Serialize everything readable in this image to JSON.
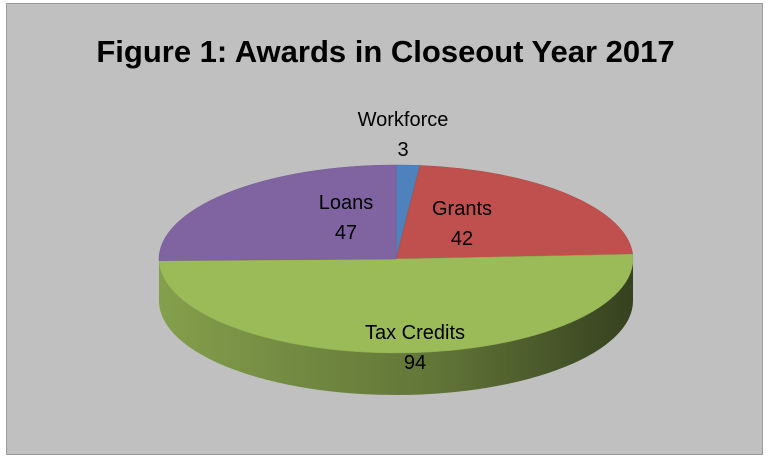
{
  "chart_data": {
    "type": "pie",
    "title": "Figure 1: Awards in Closeout Year 2017",
    "series": [
      {
        "name": "Workforce",
        "value": 3,
        "color": "#4f81bd"
      },
      {
        "name": "Grants",
        "value": 42,
        "color": "#c0504d"
      },
      {
        "name": "Tax Credits",
        "value": 94,
        "color": "#9bbb59"
      },
      {
        "name": "Loans",
        "value": 47,
        "color": "#8064a2"
      }
    ],
    "style": "3d"
  }
}
